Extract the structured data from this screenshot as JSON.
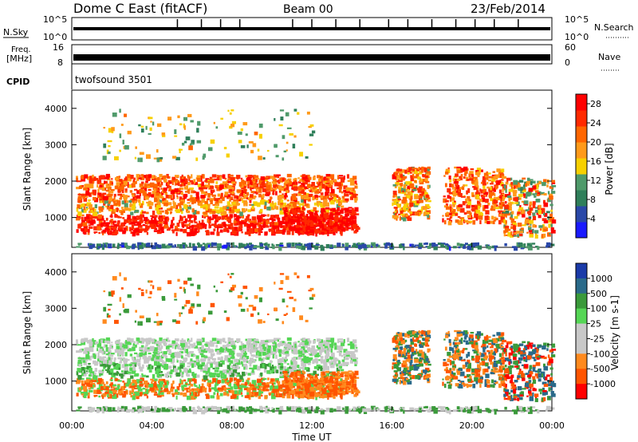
{
  "header": {
    "station": "Dome C East (fitACF)",
    "beam": "Beam 00",
    "date": "23/Feb/2014"
  },
  "top_panels": {
    "nsky_label": "N.Sky",
    "nsky_ticks": [
      "10^5",
      "10^0"
    ],
    "nsearch_label": "N.Search",
    "freq_label_1": "Freq.",
    "freq_label_2": "[MHz]",
    "freq_ticks": [
      "8",
      "16"
    ],
    "nave_label": "Nave",
    "nave_ticks": [
      "0",
      "60"
    ],
    "cpid_label": "CPID",
    "cpid_value": "twofsound 3501"
  },
  "colors": {
    "power_scale": [
      "#1a1aff",
      "#2a48a8",
      "#2f7f5a",
      "#4f9a6a",
      "#f7d000",
      "#ff9a1a",
      "#ff6600",
      "#ff2a00",
      "#ff0000"
    ],
    "velocity_scale": [
      "#ff0000",
      "#ff5500",
      "#ff8a1e",
      "#c8c8c8",
      "#c8c8c8",
      "#55d655",
      "#3a9a3a",
      "#2a6a8a",
      "#1a3aa8"
    ]
  },
  "chart_data": [
    {
      "type": "heatmap",
      "name": "power",
      "xlabel": "",
      "ylabel": "Slant Range [km]",
      "x_ticks": [
        "00:00",
        "04:00",
        "08:00",
        "12:00",
        "16:00",
        "20:00",
        "00:00"
      ],
      "x_range_hours": [
        0,
        24
      ],
      "y_ticks": [
        1000,
        2000,
        3000,
        4000
      ],
      "ylim": [
        180,
        4500
      ],
      "colorbar_label": "Power [dB]",
      "colorbar_ticks": [
        4,
        8,
        12,
        16,
        20,
        24,
        28
      ],
      "colorbar_range": [
        0,
        30
      ]
    },
    {
      "type": "heatmap",
      "name": "velocity",
      "xlabel": "Time UT",
      "ylabel": "Slant Range [km]",
      "x_ticks": [
        "00:00",
        "04:00",
        "08:00",
        "12:00",
        "16:00",
        "20:00",
        "00:00"
      ],
      "x_range_hours": [
        0,
        24
      ],
      "y_ticks": [
        1000,
        2000,
        3000,
        4000
      ],
      "ylim": [
        180,
        4500
      ],
      "colorbar_label": "Velocity [m s-1]",
      "colorbar_ticks": [
        "1000",
        "500",
        "100",
        "25",
        "-25",
        "-100",
        "-500",
        "-1000"
      ]
    }
  ]
}
